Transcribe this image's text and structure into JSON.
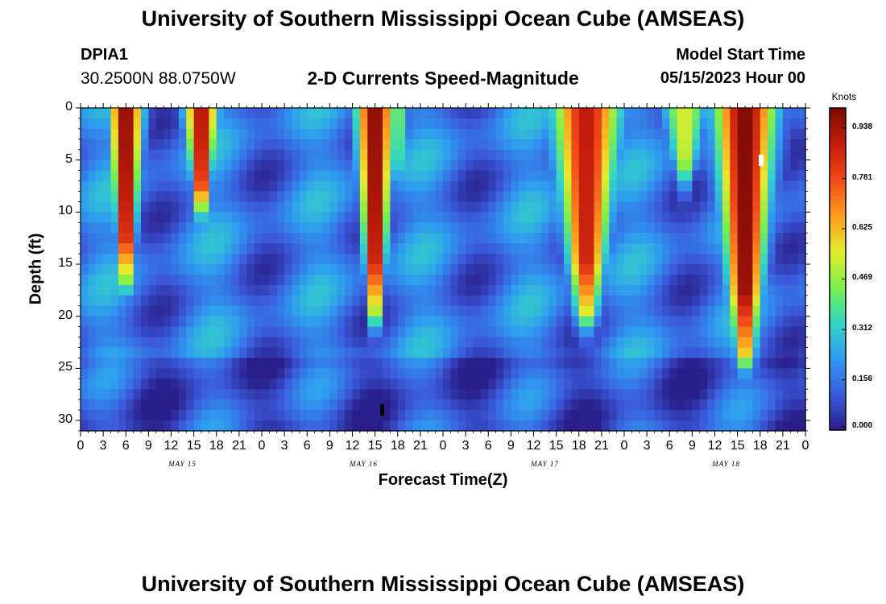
{
  "header": {
    "title_top": "University of Southern Mississippi Ocean Cube (AMSEAS)",
    "station_id": "DPIA1",
    "station_coords": "30.2500N  88.0750W",
    "plot_title": "2-D Currents Speed-Magnitude",
    "model_start_label": "Model Start Time",
    "model_start_value": "05/15/2023 Hour 00",
    "title_bottom": "University of Southern Mississippi Ocean Cube (AMSEAS)"
  },
  "colorbar": {
    "unit_label": "Knots",
    "ticks": [
      "0.938",
      "0.781",
      "0.625",
      "0.469",
      "0.312",
      "0.156",
      "0.000"
    ],
    "tick_values": [
      0.938,
      0.781,
      0.625,
      0.469,
      0.312,
      0.156,
      0.0
    ]
  },
  "chart_data": {
    "type": "heatmap",
    "title": "2-D Currents Speed-Magnitude",
    "xlabel": "Forecast Time(Z)",
    "ylabel": "Depth (ft)",
    "x_tick_labels": [
      "0",
      "3",
      "6",
      "9",
      "12",
      "15",
      "18",
      "21",
      "0",
      "3",
      "6",
      "9",
      "12",
      "15",
      "18",
      "21",
      "0",
      "3",
      "6",
      "9",
      "12",
      "15",
      "18",
      "21",
      "0",
      "3",
      "6",
      "9",
      "12",
      "15",
      "18",
      "21",
      "0"
    ],
    "day_labels": [
      "MAY 15",
      "MAY 16",
      "MAY 17",
      "MAY 18"
    ],
    "y_tick_labels": [
      "0",
      "5",
      "10",
      "15",
      "20",
      "25",
      "30"
    ],
    "y_tick_values": [
      0,
      5,
      10,
      15,
      20,
      25,
      30
    ],
    "ylim": [
      0,
      31
    ],
    "xlim_hours": [
      0,
      96
    ],
    "units": "Knots",
    "value_range": [
      0.0,
      1.0
    ],
    "colors": [
      "#2a1e8a",
      "#3b5bdc",
      "#2f9bf0",
      "#33d6c4",
      "#7cf04a",
      "#e6ea2c",
      "#ff9a1e",
      "#f2481a",
      "#c41e0b",
      "#7a0a03"
    ],
    "jet_columns": [
      {
        "hour": 6,
        "speed": 1.0,
        "max_depth": 17,
        "width_hours": 2.2
      },
      {
        "hour": 16,
        "speed": 0.95,
        "max_depth": 10,
        "width_hours": 2.2
      },
      {
        "hour": 42,
        "speed": 0.45,
        "max_depth": 8,
        "width_hours": 1.5
      },
      {
        "hour": 39,
        "speed": 1.0,
        "max_depth": 20,
        "width_hours": 2.5
      },
      {
        "hour": 67,
        "speed": 0.9,
        "max_depth": 20,
        "width_hours": 4.5
      },
      {
        "hour": 88,
        "speed": 1.0,
        "max_depth": 24,
        "width_hours": 4.0
      },
      {
        "hour": 80,
        "speed": 0.55,
        "max_depth": 7,
        "width_hours": 3.0
      }
    ]
  }
}
